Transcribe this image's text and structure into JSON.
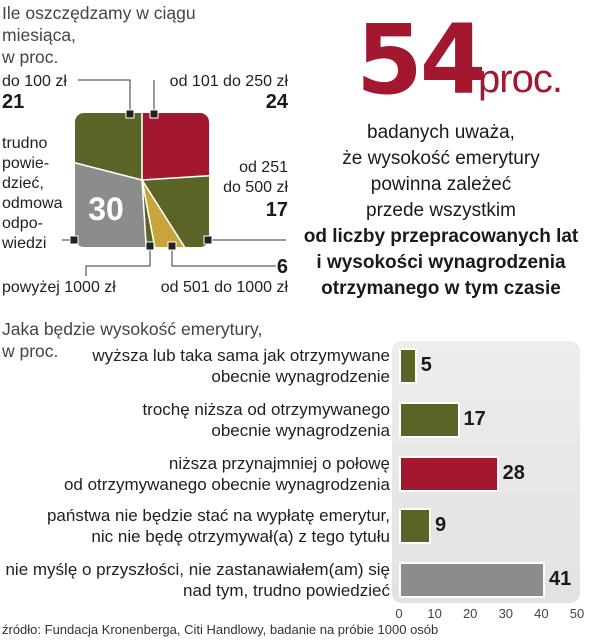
{
  "colors": {
    "olive": "#5a6427",
    "red": "#a3182f",
    "gold": "#c8a43a",
    "gray": "#8c8c8c"
  },
  "headline": {
    "value": "54",
    "unit": "proc.",
    "lines": [
      "badanych uważa,",
      "że wysokość emerytury",
      "powinna zależeć",
      "przede wszystkim"
    ],
    "bold_lines": [
      "od liczby przepracowanych lat",
      "i wysokości wynagrodzenia",
      "otrzymanego w tym czasie"
    ]
  },
  "source": "źródło: Fundacja Kronenberga, Citi Handlowy, badanie na próbie 1000 osób",
  "chart_data": [
    {
      "type": "pie",
      "title": "Ile oszczędzamy w ciągu miesiąca,\nw proc.",
      "slices": [
        {
          "label": "od 101 do 250 zł",
          "value": 24,
          "color": "#a3182f"
        },
        {
          "label": "od 251\ndo 500 zł",
          "value": 17,
          "color": "#5a6427"
        },
        {
          "label": "od 501 do 1000 zł",
          "value": 6,
          "color": "#c8a43a"
        },
        {
          "label": "powyżej 1000 zł",
          "value": 2,
          "color": "#5a6427"
        },
        {
          "label": "trudno\npowie-\ndzieć,\nodmowa\nodpo-\nwiedzi",
          "value": 30,
          "color": "#8c8c8c"
        },
        {
          "label": "do 100 zł",
          "value": 21,
          "color": "#5a6427"
        }
      ],
      "printed_values": [
        "21",
        "24",
        "17",
        "6",
        "30"
      ]
    },
    {
      "type": "bar",
      "orientation": "horizontal",
      "title": "Jaka będzie wysokość emerytury,\nw proc.",
      "categories": [
        "wyższa lub taka sama jak otrzymywane\nobecnie wynagrodzenie",
        "trochę niższa od otrzymywanego\nobecnie wynagrodzenia",
        "niższa przynajmniej o połowę\nod otrzymywanego obecnie wynagrodzenia",
        "państwa nie będzie stać na wypłatę emerytur,\nnic nie będę otrzymywał(a) z tego tytułu",
        "nie myślę o przyszłości, nie zastanawiałem(am) się\nnad tym, trudno powiedzieć"
      ],
      "values": [
        5,
        17,
        28,
        9,
        41
      ],
      "colors": [
        "#5a6427",
        "#5a6427",
        "#a3182f",
        "#5a6427",
        "#8c8c8c"
      ],
      "xlim": [
        0,
        50
      ],
      "xticks": [
        "0",
        "10",
        "20",
        "30",
        "40",
        "50"
      ]
    }
  ]
}
